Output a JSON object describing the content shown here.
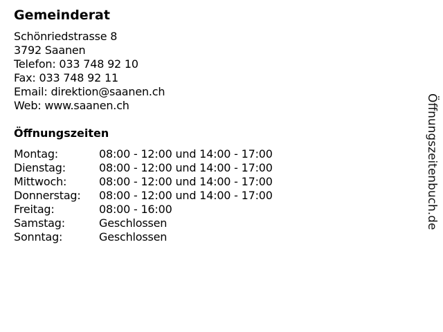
{
  "title": "Gemeinderat",
  "address": [
    "Schönriedstrasse 8",
    "3792 Saanen",
    "Telefon: 033 748 92 10",
    "Fax: 033 748 92 11",
    "Email: direktion@saanen.ch",
    "Web: www.saanen.ch"
  ],
  "hours_title": "Öffnungszeiten",
  "hours": [
    {
      "day": "Montag:",
      "time": "08:00 - 12:00 und 14:00 - 17:00"
    },
    {
      "day": "Dienstag:",
      "time": "08:00 - 12:00 und 14:00 - 17:00"
    },
    {
      "day": "Mittwoch:",
      "time": "08:00 - 12:00 und 14:00 - 17:00"
    },
    {
      "day": "Donnerstag:",
      "time": "08:00 - 12:00 und 14:00 - 17:00"
    },
    {
      "day": "Freitag:",
      "time": "08:00 - 16:00"
    },
    {
      "day": "Samstag:",
      "time": "Geschlossen"
    },
    {
      "day": "Sonntag:",
      "time": "Geschlossen"
    }
  ],
  "watermark": "Öffnungszeitenbuch.de"
}
